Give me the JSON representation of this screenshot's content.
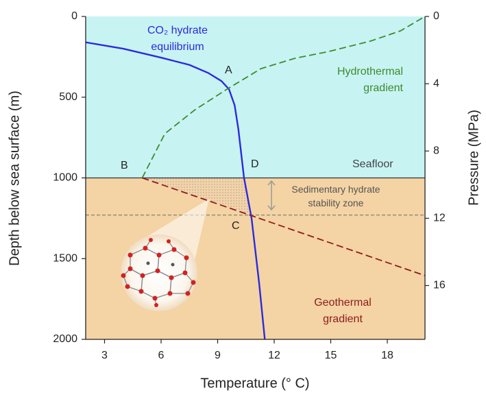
{
  "chart_data": {
    "type": "line",
    "x_label": "Temperature (° C)",
    "y_label": "Depth below sea surface (m)",
    "y2_label": "Pressure (MPa)",
    "xlim": [
      2,
      20
    ],
    "xticks": [
      3,
      6,
      9,
      12,
      15,
      18
    ],
    "ylim": [
      0,
      2000
    ],
    "yticks": [
      0,
      500,
      1000,
      1500,
      2000
    ],
    "y2lim": [
      0,
      19.2
    ],
    "y2ticks": [
      0,
      4,
      8,
      12,
      16
    ],
    "y_inverted": true,
    "seafloor_depth": 1000,
    "hydrate_zone_base_depth": 1230,
    "water_color": "#c8f3f3",
    "sediment_color": "#f4d3a4",
    "series": [
      {
        "name": "CO₂ hydrate equilibrium",
        "color": "#2a2adf",
        "dashed": false,
        "x": [
          2,
          4,
          6,
          7.5,
          8.5,
          9.2,
          9.6,
          9.9,
          10.1,
          10.4,
          10.8,
          11.2,
          11.5
        ],
        "values": [
          160,
          200,
          255,
          300,
          350,
          400,
          450,
          550,
          700,
          1000,
          1250,
          1650,
          2000
        ]
      },
      {
        "name": "Hydrothermal gradient",
        "color": "#3c8c2c",
        "dashed": true,
        "x": [
          5,
          6.2,
          7.8,
          9.5,
          11.3,
          13.1,
          14.9,
          17.1,
          18.7,
          20
        ],
        "values": [
          1000,
          726,
          578,
          450,
          323,
          259,
          217,
          153,
          89,
          0
        ]
      },
      {
        "name": "Geothermal gradient",
        "color": "#8b1c1c",
        "dashed": true,
        "x": [
          5,
          20
        ],
        "values": [
          1000,
          1605
        ]
      }
    ],
    "annotations": [
      "A",
      "B",
      "C",
      "D",
      "Seafloor",
      "Sedimentary hydrate stability zone"
    ]
  }
}
